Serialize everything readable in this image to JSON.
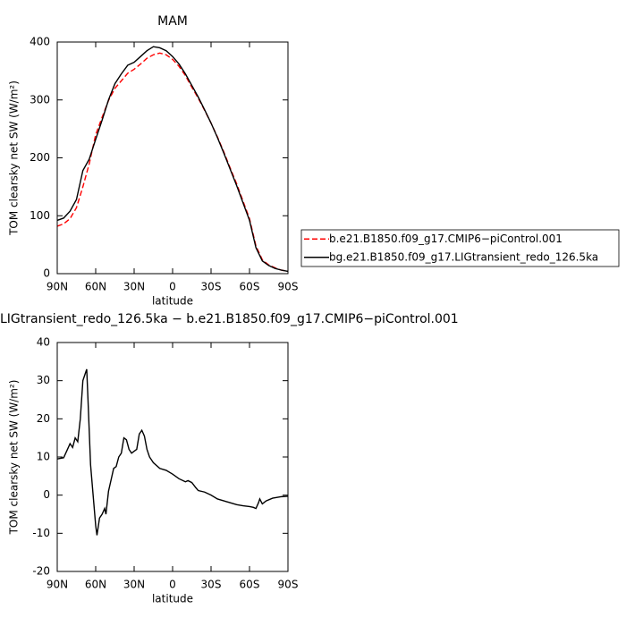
{
  "chart_data": [
    {
      "type": "line",
      "title": "MAM",
      "ylabel": "TOM clearsky net SW (W/m²)",
      "xlabel": "latitude",
      "xlim": [
        90,
        -90
      ],
      "xticks": [
        {
          "value": 90,
          "label": "90N"
        },
        {
          "value": 60,
          "label": "60N"
        },
        {
          "value": 30,
          "label": "30N"
        },
        0,
        {
          "value": -30,
          "label": "30S"
        },
        {
          "value": -60,
          "label": "60S"
        },
        {
          "value": -90,
          "label": "90S"
        }
      ],
      "ylim": [
        0,
        400
      ],
      "yticks": [
        0,
        100,
        200,
        300,
        400
      ],
      "legend": "right",
      "x": [
        90,
        85,
        80,
        75,
        70,
        65,
        60,
        55,
        50,
        45,
        40,
        35,
        30,
        25,
        20,
        15,
        10,
        5,
        0,
        -5,
        -10,
        -15,
        -20,
        -25,
        -30,
        -35,
        -40,
        -45,
        -50,
        -55,
        -60,
        -65,
        -70,
        -75,
        -80,
        -85,
        -90
      ],
      "series": [
        {
          "name": "b.e21.B1850.f09_g17.CMIP6−piControl.001",
          "color": "#ff0000",
          "linestyle": "dashed",
          "values": [
            82,
            86,
            95,
            114,
            150,
            190,
            240,
            270,
            299,
            320,
            333,
            346,
            353,
            362,
            372,
            378,
            381,
            378,
            370,
            358,
            342,
            322,
            303,
            282,
            260,
            236,
            210,
            182,
            155,
            125,
            95,
            48,
            24,
            15,
            10,
            6,
            4
          ]
        },
        {
          "name": "bg.e21.B1850.f09_g17.LIGtransient_redo_126.5ka",
          "color": "#000000",
          "linestyle": "solid",
          "values": [
            92,
            96,
            108,
            128,
            178,
            198,
            232,
            265,
            300,
            328,
            345,
            360,
            365,
            375,
            385,
            392,
            390,
            385,
            375,
            362,
            345,
            325,
            305,
            283,
            260,
            235,
            208,
            180,
            152,
            122,
            92,
            45,
            22,
            14,
            9,
            6,
            4
          ]
        }
      ]
    },
    {
      "type": "line",
      "title": "LIGtransient_redo_126.5ka − b.e21.B1850.f09_g17.CMIP6−piControl.001",
      "ylabel": "TOM clearsky net SW (W/m²)",
      "xlabel": "latitude",
      "xlim": [
        90,
        -90
      ],
      "xticks": [
        {
          "value": 90,
          "label": "90N"
        },
        {
          "value": 60,
          "label": "60N"
        },
        {
          "value": 30,
          "label": "30N"
        },
        0,
        {
          "value": -30,
          "label": "30S"
        },
        {
          "value": -60,
          "label": "60S"
        },
        {
          "value": -90,
          "label": "90S"
        }
      ],
      "ylim": [
        -20,
        40
      ],
      "yticks": [
        -20,
        -10,
        0,
        10,
        20,
        30,
        40
      ],
      "x": [
        90,
        85,
        82,
        80,
        78,
        76,
        74,
        72,
        70,
        68,
        67,
        66,
        64,
        62,
        60,
        59,
        57,
        55,
        53,
        52,
        50,
        48,
        46,
        44,
        42,
        40,
        38,
        36,
        34,
        32,
        30,
        28,
        26,
        24,
        22,
        20,
        18,
        15,
        10,
        5,
        0,
        -5,
        -10,
        -12,
        -15,
        -18,
        -20,
        -25,
        -30,
        -35,
        -40,
        -45,
        -50,
        -55,
        -60,
        -63,
        -65,
        -67,
        -68,
        -70,
        -73,
        -78,
        -85,
        -90
      ],
      "series": [
        {
          "color": "#000000",
          "values": [
            9.5,
            9.8,
            12,
            13.5,
            12.5,
            15,
            14,
            20,
            30,
            32,
            33,
            25,
            8,
            0,
            -8,
            -10.5,
            -6,
            -5,
            -3.5,
            -5,
            1,
            4,
            7,
            7.5,
            10,
            11,
            15,
            14.5,
            12,
            11,
            11.5,
            12,
            16,
            17,
            15.5,
            12,
            10,
            8.5,
            7,
            6.5,
            5.5,
            4.3,
            3.5,
            3.8,
            3.3,
            2,
            1.2,
            0.8,
            0,
            -1,
            -1.5,
            -2,
            -2.5,
            -2.8,
            -3,
            -3.2,
            -3.5,
            -2,
            -1,
            -2.3,
            -1.5,
            -0.8,
            -0.4,
            -0.3
          ]
        }
      ]
    }
  ]
}
